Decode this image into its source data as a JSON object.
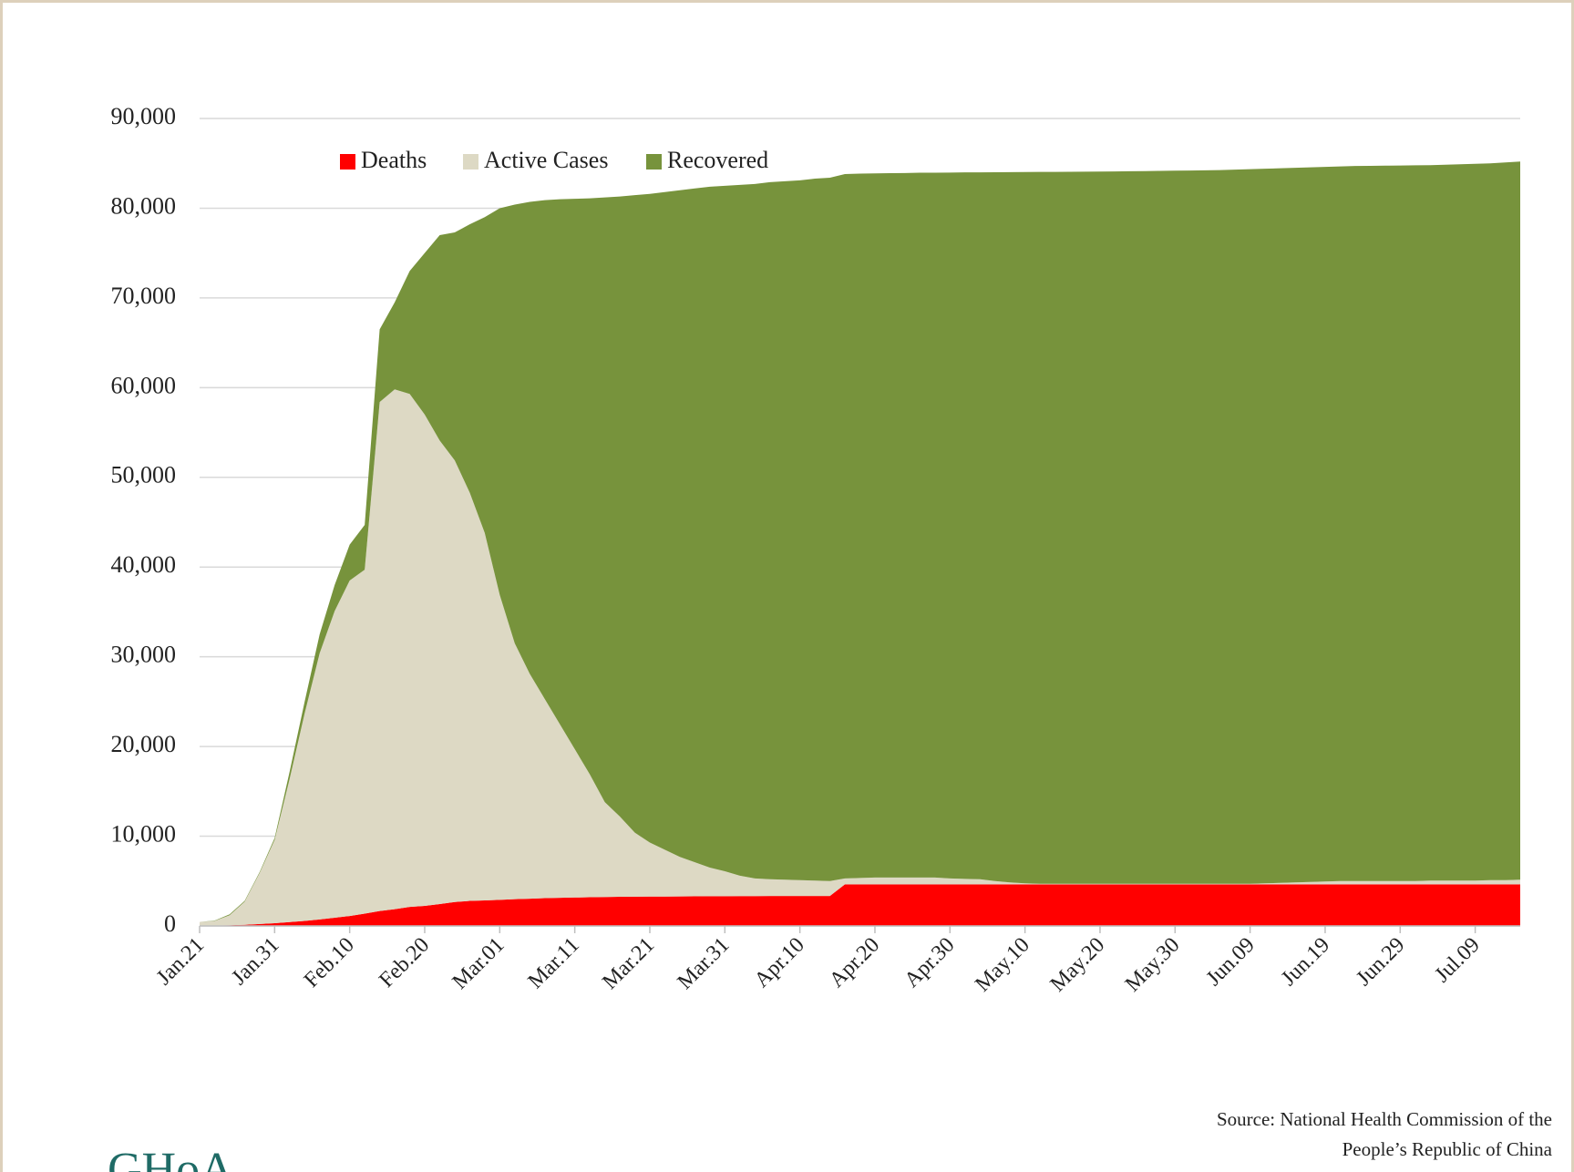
{
  "chart_data": {
    "type": "stacked_area",
    "categories": [
      "Jan.21",
      null,
      null,
      null,
      null,
      "Jan.31",
      null,
      null,
      null,
      null,
      "Feb.10",
      null,
      null,
      null,
      null,
      "Feb.20",
      null,
      null,
      null,
      null,
      "Mar.01",
      null,
      null,
      null,
      null,
      "Mar.11",
      null,
      null,
      null,
      null,
      "Mar.21",
      null,
      null,
      null,
      null,
      "Mar.31",
      null,
      null,
      null,
      null,
      "Apr.10",
      null,
      null,
      null,
      null,
      "Apr.20",
      null,
      null,
      null,
      null,
      "Apr.30",
      null,
      null,
      null,
      null,
      "May.10",
      null,
      null,
      null,
      null,
      "May.20",
      null,
      null,
      null,
      null,
      "May.30",
      null,
      null,
      null,
      null,
      "Jun.09",
      null,
      null,
      null,
      null,
      "Jun.19",
      null,
      null,
      null,
      null,
      "Jun.29",
      null,
      null,
      null,
      null,
      "Jul.09",
      null,
      null,
      null
    ],
    "series": [
      {
        "name": "Deaths",
        "color": "#ff0000",
        "values": [
          10,
          40,
          80,
          130,
          210,
          300,
          430,
          560,
          720,
          910,
          1110,
          1370,
          1660,
          1870,
          2120,
          2240,
          2440,
          2660,
          2790,
          2840,
          2910,
          2980,
          3040,
          3100,
          3140,
          3170,
          3200,
          3230,
          3250,
          3260,
          3270,
          3280,
          3290,
          3300,
          3310,
          3320,
          3330,
          3330,
          3340,
          3340,
          3340,
          3340,
          3340,
          4632,
          4632,
          4632,
          4632,
          4632,
          4632,
          4632,
          4632,
          4632,
          4632,
          4632,
          4632,
          4632,
          4632,
          4632,
          4632,
          4632,
          4632,
          4634,
          4634,
          4634,
          4634,
          4634,
          4634,
          4634,
          4634,
          4634,
          4634,
          4634,
          4634,
          4634,
          4634,
          4634,
          4634,
          4634,
          4634,
          4634,
          4634,
          4634,
          4634,
          4634,
          4634,
          4634,
          4634,
          4634,
          4634
        ]
      },
      {
        "name": "Active Cases",
        "color": "#ddd9c4",
        "values": [
          440,
          520,
          1120,
          2570,
          5690,
          9300,
          15970,
          23140,
          29680,
          34190,
          37390,
          38330,
          56740,
          57930,
          57180,
          54760,
          51660,
          49240,
          45510,
          40960,
          33990,
          28520,
          25060,
          22200,
          19360,
          16530,
          13700,
          10570,
          8950,
          7140,
          6030,
          5220,
          4410,
          3800,
          3190,
          2780,
          2270,
          1970,
          1860,
          1810,
          1760,
          1710,
          1660,
          668,
          718,
          768,
          768,
          768,
          768,
          768,
          668,
          618,
          568,
          368,
          218,
          118,
          68,
          68,
          68,
          68,
          68,
          66,
          66,
          66,
          66,
          66,
          66,
          66,
          66,
          66,
          66,
          116,
          166,
          216,
          266,
          316,
          366,
          366,
          366,
          366,
          366,
          366,
          416,
          416,
          416,
          416,
          466,
          466,
          516
        ]
      },
      {
        "name": "Recovered",
        "color": "#77933c",
        "values": [
          0,
          40,
          100,
          100,
          100,
          200,
          800,
          1300,
          2100,
          2900,
          4000,
          5000,
          8100,
          9700,
          13700,
          18000,
          22900,
          25400,
          29900,
          35200,
          43100,
          48900,
          52600,
          55600,
          58500,
          61350,
          64200,
          67400,
          69100,
          71050,
          72300,
          73300,
          74300,
          75100,
          75900,
          76400,
          77000,
          77400,
          77700,
          77850,
          78000,
          78250,
          78400,
          78500,
          78500,
          78480,
          78500,
          78520,
          78550,
          78560,
          78670,
          78740,
          78800,
          79010,
          79170,
          79280,
          79340,
          79350,
          79360,
          79370,
          79380,
          79400,
          79420,
          79440,
          79460,
          79480,
          79500,
          79520,
          79550,
          79600,
          79650,
          79650,
          79650,
          79650,
          79650,
          79650,
          79650,
          79700,
          79720,
          79740,
          79760,
          79780,
          79750,
          79800,
          79850,
          79900,
          79900,
          80000,
          80050
        ]
      }
    ],
    "ylim": [
      0,
      90000
    ],
    "yticks": [
      0,
      {
        "value": 10000,
        "label": "10,000"
      },
      {
        "value": 20000,
        "label": "20,000"
      },
      {
        "value": 30000,
        "label": "30,000"
      },
      {
        "value": 40000,
        "label": "40,000"
      },
      {
        "value": 50000,
        "label": "50,000"
      },
      {
        "value": 60000,
        "label": "60,000"
      },
      {
        "value": 70000,
        "label": "70,000"
      },
      {
        "value": 80000,
        "label": "80,000"
      },
      {
        "value": 90000,
        "label": "90,000"
      }
    ],
    "grid": true,
    "legend": "top",
    "source": [
      "Source: National Health Commission of the",
      "People’s Republic of China"
    ],
    "logo": "GHoA"
  }
}
